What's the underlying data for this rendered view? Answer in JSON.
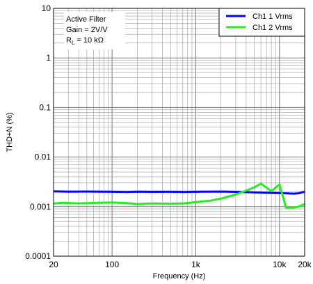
{
  "chart_data": {
    "type": "line",
    "title": "",
    "xlabel": "Frequency (Hz)",
    "ylabel": "THD+N (%)",
    "xscale": "log",
    "yscale": "log",
    "xlim": [
      20,
      20000
    ],
    "ylim": [
      0.0001,
      10
    ],
    "grid": true,
    "legend_position": "top-right",
    "x_ticks": [
      {
        "value": 20,
        "label": "20"
      },
      {
        "value": 100,
        "label": "100"
      },
      {
        "value": 1000,
        "label": "1k"
      },
      {
        "value": 10000,
        "label": "10k"
      },
      {
        "value": 20000,
        "label": "20k"
      }
    ],
    "y_ticks": [
      {
        "value": 0.0001,
        "label": "0.0001"
      },
      {
        "value": 0.001,
        "label": "0.001"
      },
      {
        "value": 0.01,
        "label": "0.01"
      },
      {
        "value": 0.1,
        "label": "0.1"
      },
      {
        "value": 1,
        "label": "1"
      },
      {
        "value": 10,
        "label": "10"
      }
    ],
    "annotation": {
      "line1": "Active Filter",
      "line2": "Gain = 2V/V",
      "line3_main": "R",
      "line3_sub": "L",
      "line3_rest": " = 10 kΩ"
    },
    "series": [
      {
        "name": "Ch1 1 Vrms",
        "color": "#0000ff",
        "x": [
          20,
          30,
          50,
          70,
          100,
          150,
          200,
          300,
          500,
          700,
          1000,
          1500,
          2000,
          3000,
          4000,
          5000,
          6000,
          7000,
          8000,
          10000,
          12000,
          15000,
          17000,
          20000
        ],
        "y": [
          0.00203,
          0.00201,
          0.00202,
          0.00201,
          0.002,
          0.00198,
          0.00201,
          0.00199,
          0.002,
          0.00198,
          0.002,
          0.00201,
          0.00202,
          0.00199,
          0.00196,
          0.00193,
          0.00191,
          0.0019,
          0.00189,
          0.00187,
          0.00185,
          0.00183,
          0.00186,
          0.002
        ]
      },
      {
        "name": "Ch1 2 Vrms",
        "color": "#22ee22",
        "x": [
          20,
          25,
          40,
          70,
          100,
          150,
          200,
          300,
          500,
          700,
          1000,
          1500,
          2000,
          3000,
          4000,
          5000,
          6000,
          8000,
          10000,
          12000,
          15000,
          17000,
          20000
        ],
        "y": [
          0.00115,
          0.0012,
          0.00116,
          0.0012,
          0.00121,
          0.00118,
          0.00112,
          0.00116,
          0.00114,
          0.00116,
          0.00123,
          0.00132,
          0.00145,
          0.00175,
          0.0021,
          0.00245,
          0.0029,
          0.00205,
          0.0028,
          0.00095,
          0.00096,
          0.001,
          0.00112
        ]
      }
    ]
  }
}
